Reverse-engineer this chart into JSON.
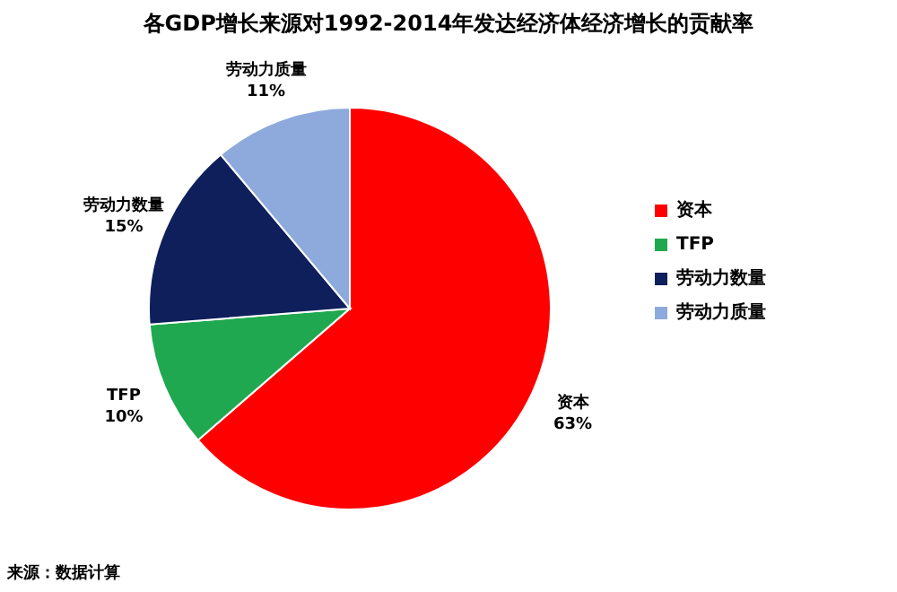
{
  "chart_data": {
    "type": "pie",
    "title": "各GDP增长来源对1992-2014年发达经济体经济增长的贡献率",
    "categories": [
      "资本",
      "TFP",
      "劳动力数量",
      "劳动力质量"
    ],
    "values": [
      63,
      10,
      15,
      11
    ],
    "value_labels": [
      "63%",
      "10%",
      "15%",
      "11%"
    ],
    "colors": [
      "#ff0000",
      "#1fa84f",
      "#0e1f5b",
      "#8eaadc"
    ],
    "legend": "right",
    "annotations": [
      "来源：数据计算"
    ]
  }
}
